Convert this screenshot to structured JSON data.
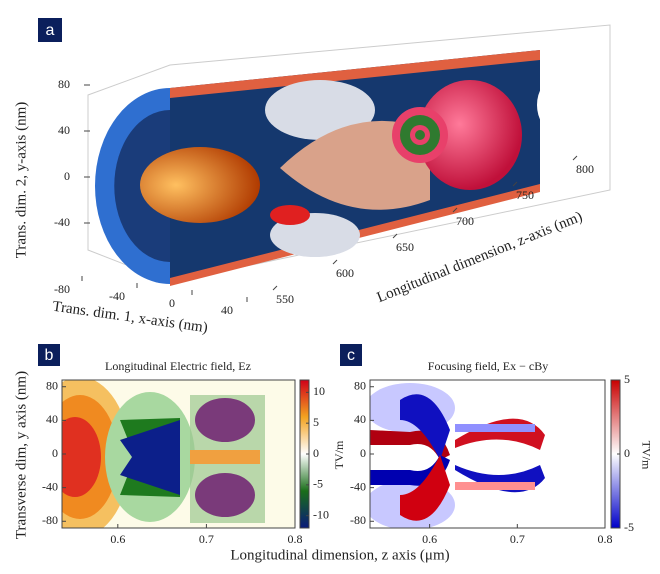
{
  "chart_data": [
    {
      "type": "render3d",
      "label": "a",
      "ylabel": "Trans. dim. 2, y-axis (nm)",
      "xlabel": "Trans. dim. 1, x-axis (nm)",
      "zlabel": "Longitudinal dimension, z-axis (nm)",
      "yticks": [
        80,
        40,
        0,
        -40
      ],
      "xticks": [
        -80,
        -40,
        0,
        40
      ],
      "zticks": [
        550,
        600,
        650,
        700,
        750,
        800
      ]
    },
    {
      "type": "heatmap",
      "label": "b",
      "title": "Longitudinal Electric field, Ez",
      "xlabel": "Longitudinal dimension, z axis (μm)",
      "ylabel": "Transverse dim, y axis (nm)",
      "xlim": [
        0.537,
        0.8
      ],
      "xticks": [
        0.6,
        0.7,
        0.8
      ],
      "ylim": [
        -88,
        88
      ],
      "yticks": [
        80,
        40,
        0,
        -40,
        -80
      ],
      "clim": [
        -12,
        12
      ],
      "cticks": [
        10,
        5,
        0,
        -5,
        -10
      ],
      "colors": [
        "#0a1a7a",
        "#1a6e1a",
        "#ffffff",
        "#f3a320",
        "#d0001a"
      ]
    },
    {
      "type": "heatmap",
      "label": "c",
      "title": "Focusing field, Ex − cBy",
      "ylabel": "TV/m",
      "colorbar_label": "TV/m",
      "xlim": [
        0.532,
        0.8
      ],
      "xticks": [
        0.6,
        0.7,
        0.8
      ],
      "ylim": [
        -88,
        88
      ],
      "yticks": [
        80,
        40,
        0,
        -40,
        -80
      ],
      "clim": [
        -5,
        5
      ],
      "cticks": [
        5,
        0,
        -5
      ],
      "colors": [
        "#0000c8",
        "#ffffff",
        "#c80000"
      ]
    }
  ]
}
